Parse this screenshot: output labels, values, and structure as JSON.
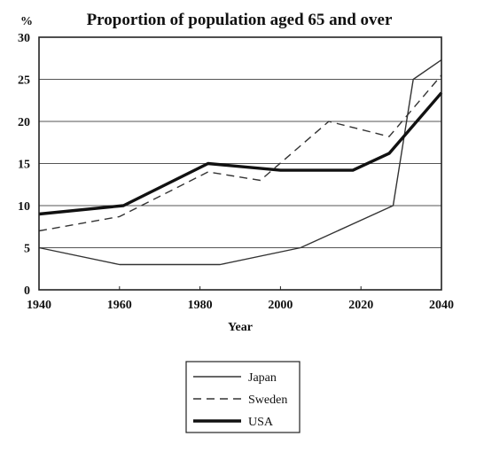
{
  "chart_data": {
    "type": "line",
    "title": "Proportion of population aged 65 and over",
    "xlabel": "Year",
    "ylabel": "%",
    "xlim": [
      1940,
      2040
    ],
    "ylim": [
      0,
      30
    ],
    "xticks": [
      1940,
      1960,
      1980,
      2000,
      2020,
      2040
    ],
    "yticks": [
      0,
      5,
      10,
      15,
      20,
      25,
      30
    ],
    "grid": "horizontal",
    "legend_position": "bottom-center",
    "series": [
      {
        "name": "Japan",
        "style": "thin-solid",
        "color": "#333333",
        "x": [
          1940,
          1960,
          1985,
          2005,
          2028,
          2033,
          2040
        ],
        "y": [
          5,
          3,
          3,
          5,
          10,
          25,
          27.3
        ]
      },
      {
        "name": "Sweden",
        "style": "dashed",
        "color": "#333333",
        "x": [
          1940,
          1960,
          1982,
          1995,
          2012,
          2027,
          2040
        ],
        "y": [
          7,
          8.7,
          14,
          13,
          20,
          18.2,
          25.5
        ]
      },
      {
        "name": "USA",
        "style": "thick-solid",
        "color": "#111111",
        "x": [
          1940,
          1961,
          1982,
          2000,
          2018,
          2027,
          2040
        ],
        "y": [
          9,
          10,
          15,
          14.2,
          14.2,
          16.2,
          23.4
        ]
      }
    ]
  }
}
